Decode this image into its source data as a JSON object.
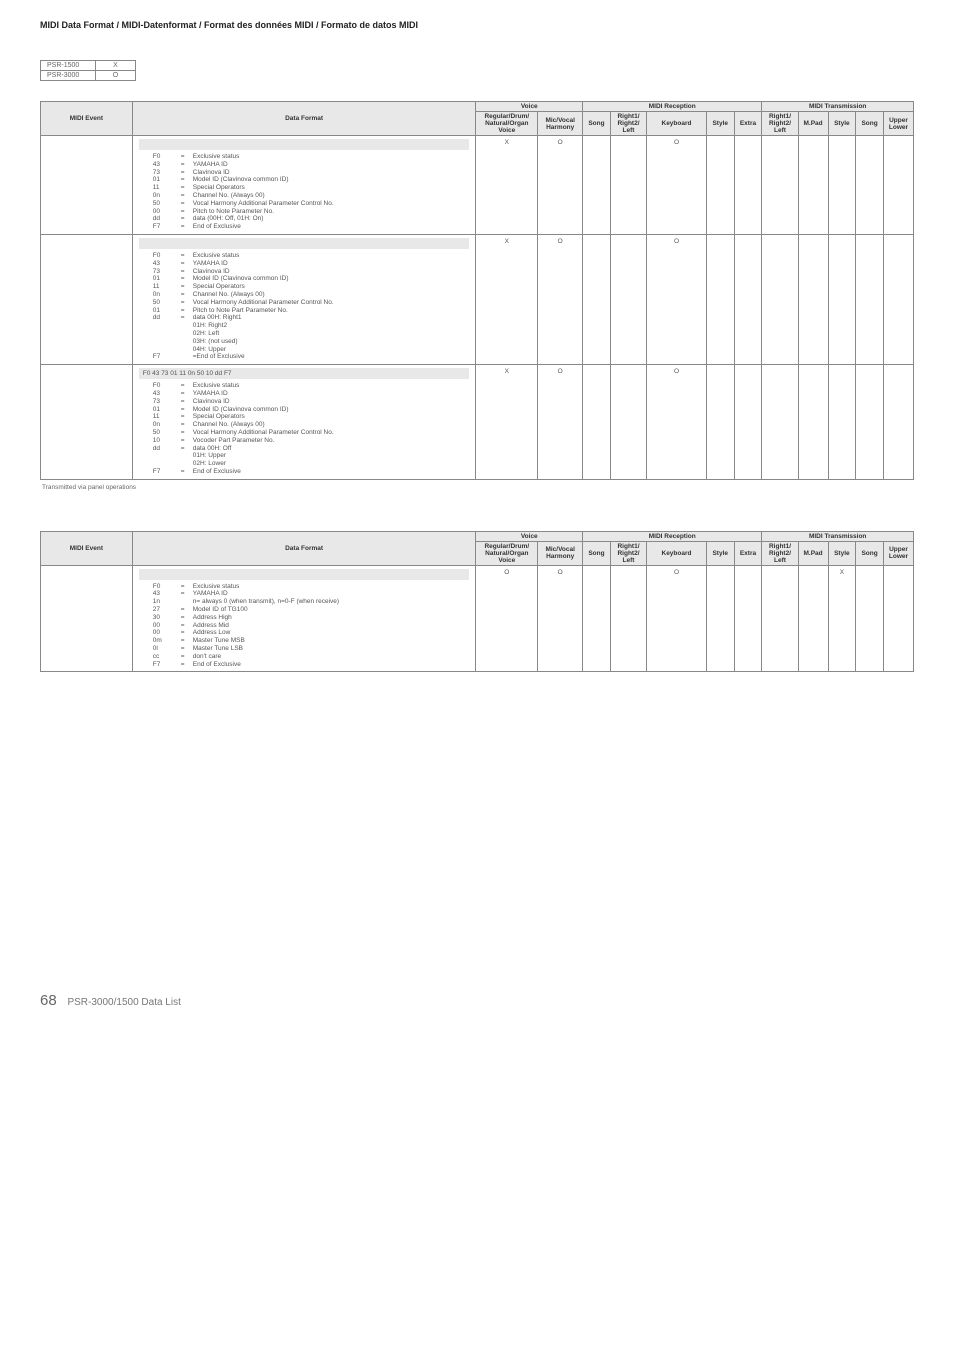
{
  "header_title": "MIDI Data Format / MIDI-Datenformat / Format des données MIDI / Formato de datos MIDI",
  "models": [
    {
      "name": "PSR-1500",
      "val": "X"
    },
    {
      "name": "PSR-3000",
      "val": "O"
    }
  ],
  "col_labels": {
    "midi_event": "MIDI Event",
    "data_format": "Data Format",
    "voice": "Voice",
    "reception": "MIDI Reception",
    "transmission": "MIDI Transmission",
    "voice_reg": "Regular/Drum/ Natural/Organ Voice",
    "voice_mic": "Mic/Vocal Harmony",
    "song": "Song",
    "r12l": "Right1/ Right2/ Left",
    "keyboard": "Keyboard",
    "style": "Style",
    "extra": "Extra",
    "mpad": "M.Pad",
    "upper_lower": "Upper Lower"
  },
  "col_widths": {
    "midi_event": 86,
    "data_format": 322,
    "voice_reg": 58,
    "voice_mic": 42,
    "song": 26,
    "r12l": 34,
    "keyboard": 56,
    "style": 26,
    "extra": 26,
    "mpad": 28,
    "upper_lower": 28
  },
  "table1_rows": [
    {
      "header_bar": "",
      "lines": [
        [
          "F0",
          "=",
          "Exclusive status"
        ],
        [
          "43",
          "=",
          "YAMAHA ID"
        ],
        [
          "73",
          "=",
          "Clavinova ID"
        ],
        [
          "01",
          "=",
          "Model ID (Clavinova common ID)"
        ],
        [
          "11",
          "=",
          "Special Operators"
        ],
        [
          "0n",
          "=",
          "Channel No. (Always 00)"
        ],
        [
          "50",
          "=",
          "Vocal Harmony Additional Parameter Control No."
        ],
        [
          "00",
          "=",
          "Pitch to Note Parameter No."
        ],
        [
          "dd",
          "=",
          "data (00H: Off, 01H: On)"
        ],
        [
          "F7",
          "=",
          "End of Exclusive"
        ]
      ],
      "voice_reg": "X",
      "voice_mic": "O",
      "rec_keyboard": "O"
    },
    {
      "header_bar": "",
      "lines": [
        [
          "F0",
          "=",
          "Exclusive status"
        ],
        [
          "43",
          "=",
          "YAMAHA ID"
        ],
        [
          "73",
          "=",
          "Clavinova ID"
        ],
        [
          "01",
          "=",
          "Model ID (Clavinova common ID)"
        ],
        [
          "11",
          "=",
          "Special Operators"
        ],
        [
          "0n",
          "=",
          "Channel No. (Always 00)"
        ],
        [
          "50",
          "=",
          "Vocal Harmony Additional Parameter Control No."
        ],
        [
          "01",
          "=",
          "Pitch to Note Part Parameter No."
        ],
        [
          "dd",
          "=",
          "data 00H: Right1"
        ]
      ],
      "subs": [
        "01H: Right2",
        "02H: Left",
        "03H: (not used)",
        "04H: Upper"
      ],
      "tail": [
        [
          "F7",
          "",
          "=End of Exclusive"
        ]
      ],
      "voice_reg": "X",
      "voice_mic": "O",
      "rec_keyboard": "O"
    },
    {
      "header_bar": "F0 43 73 01 11 0n 50 10 dd F7",
      "lines": [
        [
          "F0",
          "=",
          "Exclusive status"
        ],
        [
          "43",
          "=",
          "YAMAHA ID"
        ],
        [
          "73",
          "=",
          "Clavinova ID"
        ],
        [
          "01",
          "=",
          "Model ID (Clavinova common ID)"
        ],
        [
          "11",
          "=",
          "Special Operators"
        ],
        [
          "0n",
          "=",
          "Channel No. (Always 00)"
        ],
        [
          "50",
          "=",
          "Vocal Harmony Additional Parameter Control No."
        ],
        [
          "10",
          "=",
          "Vocoder Part Parameter No."
        ],
        [
          "dd",
          "=",
          "data 00H: Off"
        ]
      ],
      "subs": [
        "01H: Upper",
        "02H: Lower"
      ],
      "tail": [
        [
          "F7",
          "=",
          "End of Exclusive"
        ]
      ],
      "voice_reg": "X",
      "voice_mic": "O",
      "rec_keyboard": "O"
    }
  ],
  "footnote1": "Transmitted via panel operations",
  "table2_rows": [
    {
      "header_bar": "",
      "lines": [
        [
          "F0",
          "=",
          "Exclusive status"
        ],
        [
          "43",
          "=",
          "YAMAHA ID"
        ],
        [
          "1n",
          "",
          "   n= always 0 (when transmit), n=0-F (when receive)"
        ],
        [
          "27",
          "=",
          "Model ID of TG100"
        ],
        [
          "30",
          "=",
          "Address High"
        ],
        [
          "00",
          "=",
          "Address Mid"
        ],
        [
          "00",
          "=",
          "Address Low"
        ],
        [
          "0m",
          "=",
          "Master Tune MSB"
        ],
        [
          "0l",
          "=",
          "Master Tune LSB"
        ],
        [
          "cc",
          "=",
          "don't care"
        ],
        [
          "F7",
          "=",
          "End of Exclusive"
        ]
      ],
      "voice_reg": "O",
      "voice_mic": "O",
      "rec_keyboard": "O",
      "tx_style": "X"
    }
  ],
  "footer_page": "68",
  "footer_text": "PSR-3000/1500 Data List"
}
